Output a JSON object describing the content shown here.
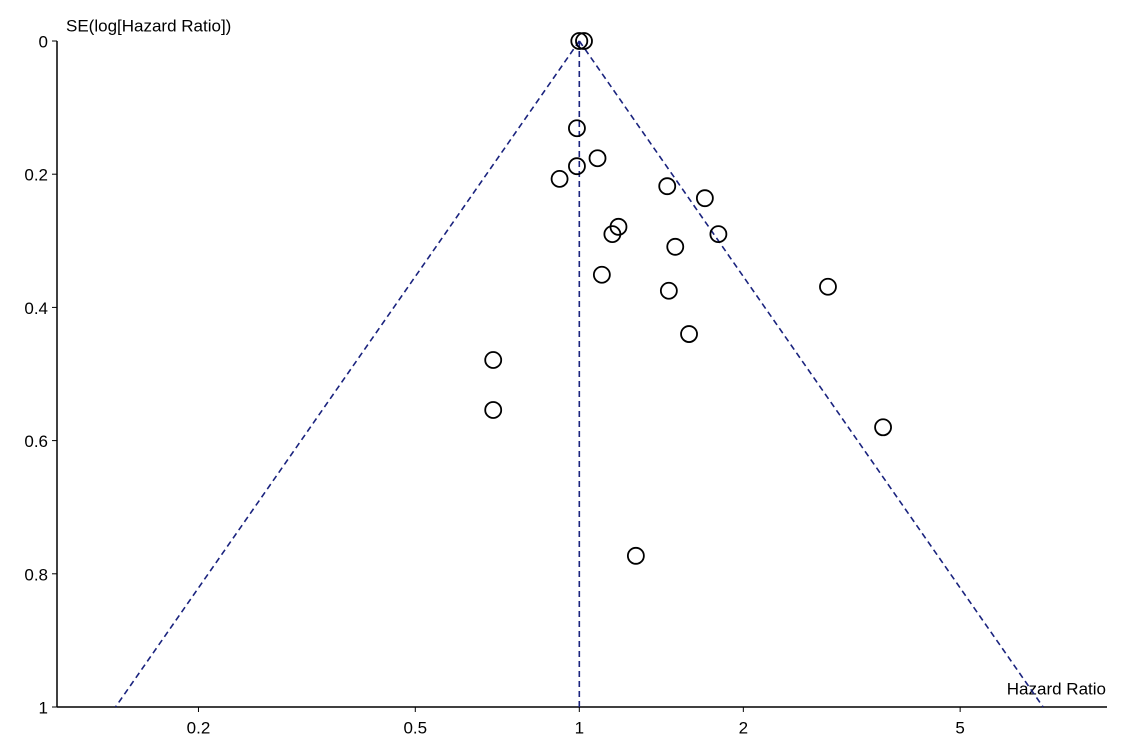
{
  "chart_data": {
    "type": "funnel",
    "x_label": "Hazard Ratio",
    "y_label": "SE(log[Hazard Ratio])",
    "x": [
      1.0,
      1.02,
      0.99,
      1.08,
      0.99,
      0.92,
      1.45,
      1.7,
      1.18,
      1.15,
      1.8,
      1.5,
      1.1,
      1.46,
      2.86,
      1.59,
      0.695,
      0.695,
      3.61,
      1.27
    ],
    "values": [
      0.0,
      0.0,
      0.131,
      0.176,
      0.188,
      0.207,
      0.218,
      0.236,
      0.279,
      0.29,
      0.29,
      0.309,
      0.351,
      0.375,
      0.369,
      0.44,
      0.479,
      0.554,
      0.58,
      0.773
    ],
    "color": "#000000",
    "line_color": "#1a237e",
    "reference_x": 1,
    "funnel_z": 1.96,
    "xscale": "log",
    "xlim": [
      0.11,
      9.3
    ],
    "xticks": [
      0.2,
      0.5,
      1,
      2,
      5
    ],
    "ylim": [
      0,
      1
    ],
    "yticks": [
      0,
      0.2,
      0.4,
      0.6,
      0.8,
      1
    ],
    "y_inverted": true
  }
}
